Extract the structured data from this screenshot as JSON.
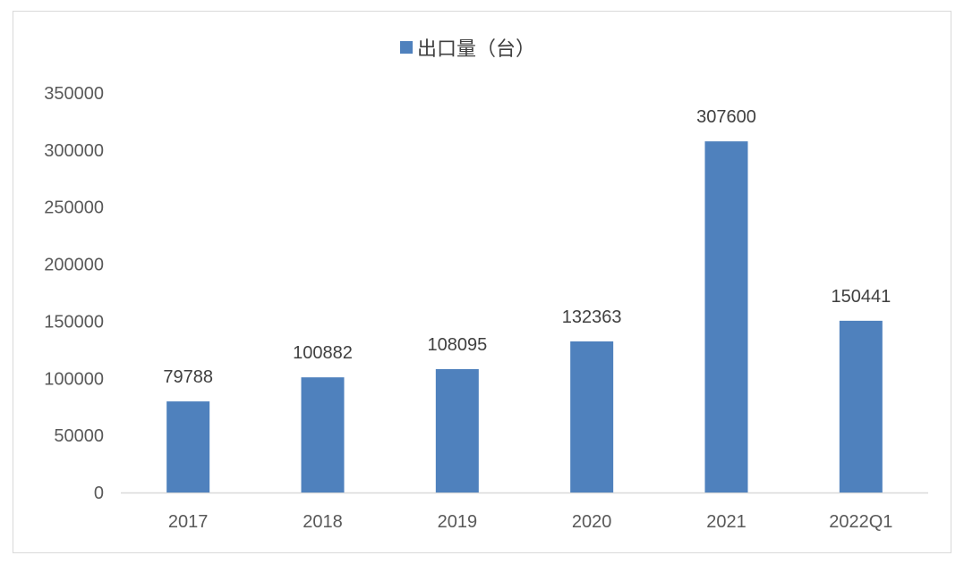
{
  "chart_data": {
    "type": "bar",
    "categories": [
      "2017",
      "2018",
      "2019",
      "2020",
      "2021",
      "2022Q1"
    ],
    "series": [
      {
        "name": "出口量（台）",
        "values": [
          79788,
          100882,
          108095,
          132363,
          307600,
          150441
        ]
      }
    ],
    "data_labels": [
      "79788",
      "100882",
      "108095",
      "132363",
      "307600",
      "150441"
    ],
    "y_ticks": [
      "0",
      "50000",
      "100000",
      "150000",
      "200000",
      "250000",
      "300000",
      "350000"
    ],
    "ylim": [
      0,
      350000
    ],
    "grid": false,
    "legend_position": "top-center",
    "colors": {
      "bar": "#4f81bd",
      "axis": "#d9d9d9"
    }
  }
}
